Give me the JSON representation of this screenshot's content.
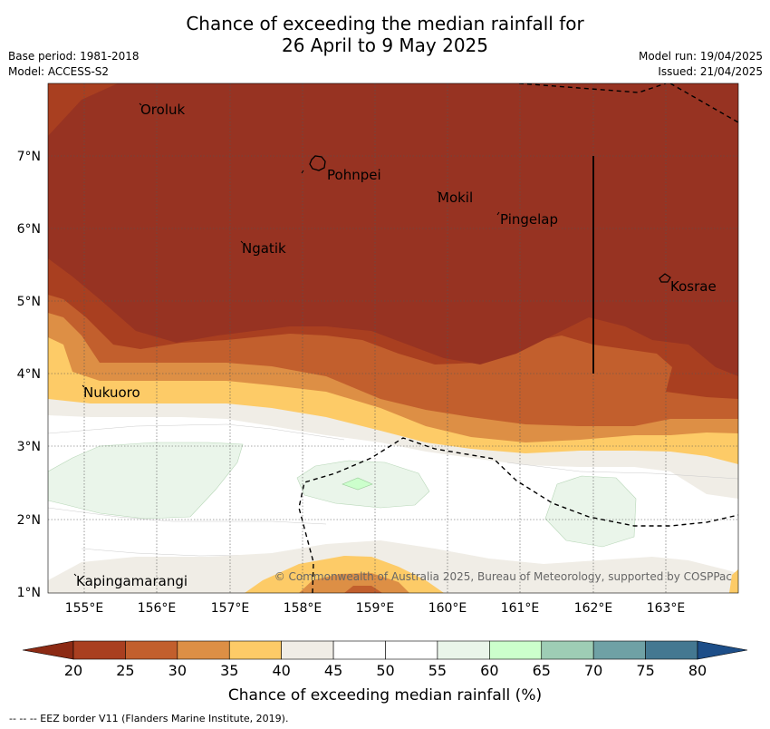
{
  "title": {
    "line1": "Chance of exceeding the median rainfall for",
    "line2": "26 April to 9 May 2025"
  },
  "meta_left": {
    "base_period": "Base period: 1981-2018",
    "model": "Model: ACCESS-S2"
  },
  "meta_right": {
    "model_run": "Model run: 19/04/2025",
    "issued": "Issued: 21/04/2025"
  },
  "map": {
    "lon_range": [
      154.5,
      164.0
    ],
    "lat_range": [
      1.0,
      8.0
    ],
    "lon_ticks": [
      "155°E",
      "156°E",
      "157°E",
      "158°E",
      "159°E",
      "160°E",
      "161°E",
      "162°E",
      "163°E"
    ],
    "lat_ticks": [
      "7°N",
      "6°N",
      "5°N",
      "4°N",
      "3°N",
      "2°N",
      "1°N"
    ],
    "places": [
      "Oroluk",
      "Pohnpei",
      "Mokil",
      "Pingelap",
      "Ngatik",
      "Kosrae",
      "Nukuoro",
      "Kapingamarangi"
    ],
    "copyright": "© Commonwealth of Australia 2025, Bureau of Meteorology, supported by COSPPac"
  },
  "colorbar": {
    "ticks": [
      "20",
      "25",
      "30",
      "35",
      "40",
      "45",
      "50",
      "55",
      "60",
      "65",
      "70",
      "75",
      "80"
    ],
    "label": "Chance of exceeding median rainfall (%)",
    "colors": [
      "#A93F20",
      "#C25F2D",
      "#DD8F45",
      "#FDCB67",
      "#F0EDE6",
      "#FFFFFF",
      "#FFFFFF",
      "#EAF5EA",
      "#CCFFCC",
      "#9ECDB5",
      "#6FA1A5",
      "#447891"
    ],
    "low_end_color": "#8C2A14",
    "high_end_color": "#1D4E88"
  },
  "footer": "--  --  -- EEZ border V11 (Flanders Marine Institute, 2019)."
}
